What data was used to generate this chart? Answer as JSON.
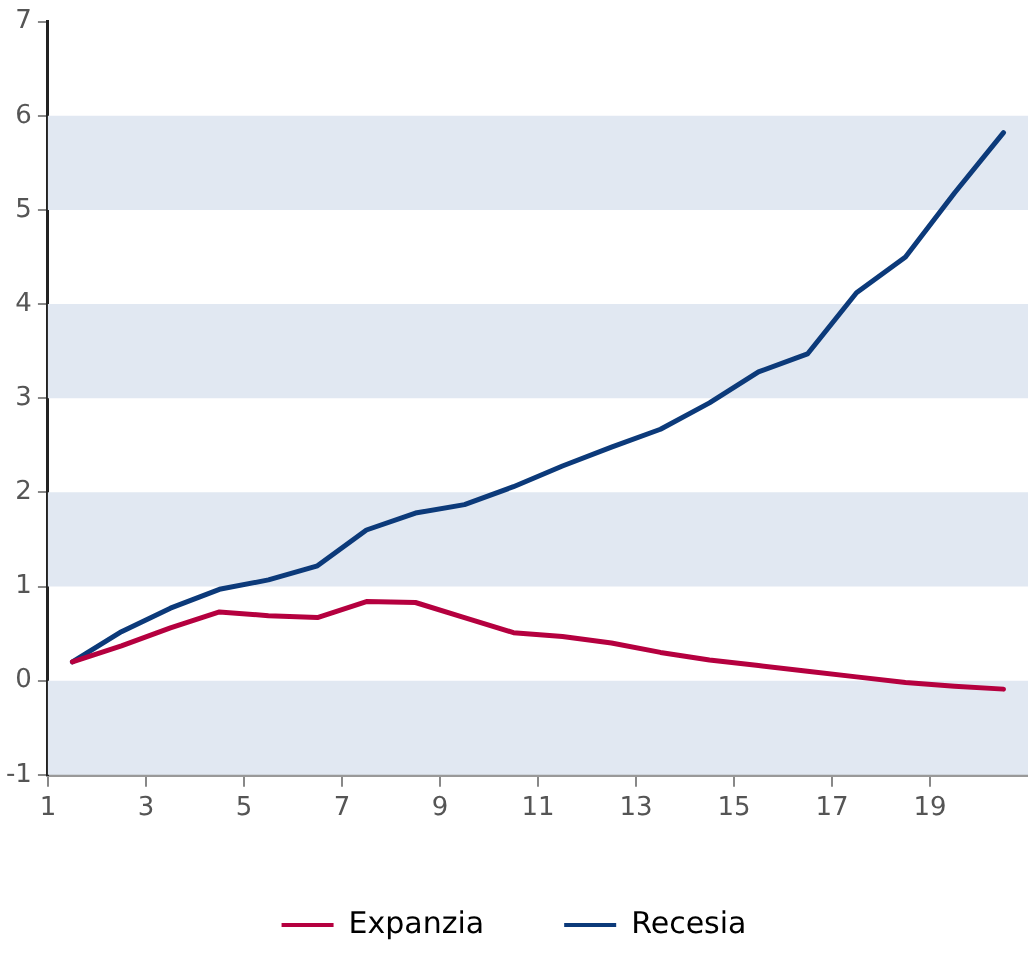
{
  "chart_data": {
    "type": "line",
    "x": [
      1.5,
      2.5,
      3.5,
      4.5,
      5.5,
      6.5,
      7.5,
      8.5,
      9.5,
      10.5,
      11.5,
      12.5,
      13.5,
      14.5,
      15.5,
      16.5,
      17.5,
      18.5,
      19.5,
      20.5
    ],
    "series": [
      {
        "name": "Expanzia",
        "color": "#b5003f",
        "values": [
          0.2,
          0.37,
          0.56,
          0.73,
          0.69,
          0.67,
          0.84,
          0.83,
          0.67,
          0.51,
          0.47,
          0.4,
          0.3,
          0.22,
          0.16,
          0.1,
          0.04,
          -0.02,
          -0.06,
          -0.09
        ]
      },
      {
        "name": "Recesia",
        "color": "#0c3a7a",
        "values": [
          0.2,
          0.52,
          0.77,
          0.97,
          1.07,
          1.22,
          1.6,
          1.78,
          1.87,
          2.06,
          2.28,
          2.48,
          2.67,
          2.95,
          3.28,
          3.47,
          4.12,
          4.5,
          5.18,
          5.82
        ]
      }
    ],
    "xlim": [
      1,
      21
    ],
    "xticks": [
      1,
      3,
      5,
      7,
      9,
      11,
      13,
      15,
      17,
      19
    ],
    "ylim": [
      -1,
      7
    ],
    "yticks": [
      -1,
      0,
      1,
      2,
      3,
      4,
      5,
      6,
      7
    ],
    "bands": [
      {
        "axis": "y",
        "from": -1,
        "to": 0,
        "color": "#e1e8f2"
      },
      {
        "axis": "y",
        "from": 1,
        "to": 2,
        "color": "#e1e8f2"
      },
      {
        "axis": "y",
        "from": 3,
        "to": 4,
        "color": "#e1e8f2"
      },
      {
        "axis": "y",
        "from": 5,
        "to": 6,
        "color": "#e1e8f2"
      }
    ],
    "grid": false,
    "legend": "bottom",
    "marker": "none",
    "line_style": "solid"
  }
}
